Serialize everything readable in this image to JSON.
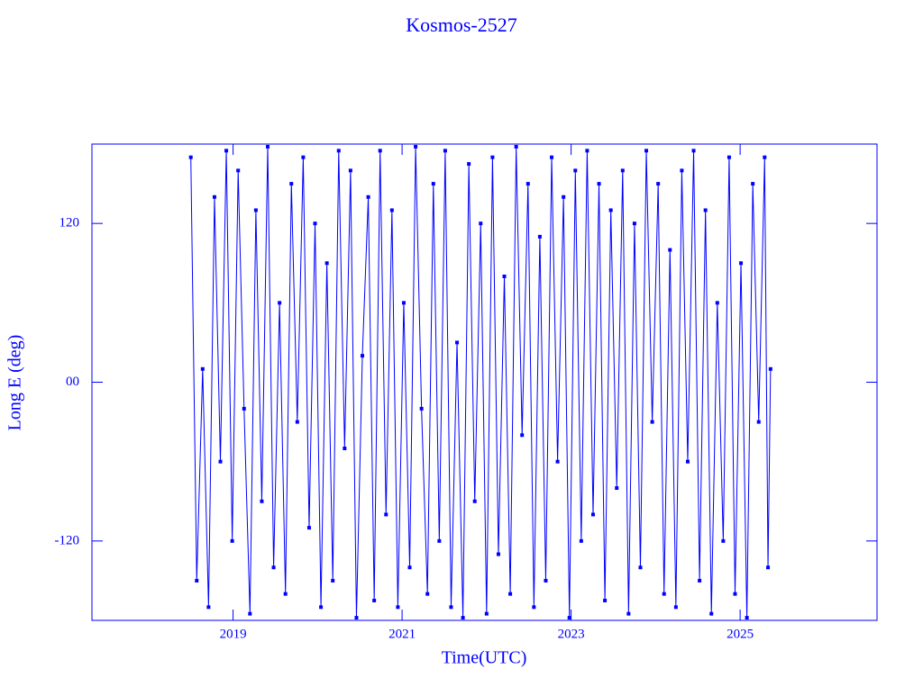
{
  "chart_data": {
    "type": "line",
    "title": "Kosmos-2527",
    "x_label": "Time(UTC)",
    "y_label": "Long E (deg)",
    "xlim": [
      2017.33,
      2026.62
    ],
    "ylim": [
      -180,
      180
    ],
    "xticks": [
      2019,
      2021,
      2023,
      2025
    ],
    "yticks": [
      -120,
      {
        "value": 0,
        "label": "00"
      },
      120
    ],
    "x": [
      2018.5,
      2018.57,
      2018.64,
      2018.71,
      2018.78,
      2018.85,
      2018.92,
      2018.99,
      2019.06,
      2019.13,
      2019.2,
      2019.27,
      2019.34,
      2019.41,
      2019.48,
      2019.55,
      2019.62,
      2019.69,
      2019.76,
      2019.83,
      2019.9,
      2019.97,
      2020.04,
      2020.11,
      2020.18,
      2020.25,
      2020.32,
      2020.39,
      2020.46,
      2020.53,
      2020.6,
      2020.67,
      2020.74,
      2020.81,
      2020.88,
      2020.95,
      2021.02,
      2021.09,
      2021.16,
      2021.23,
      2021.3,
      2021.37,
      2021.44,
      2021.51,
      2021.58,
      2021.65,
      2021.72,
      2021.79,
      2021.86,
      2021.93,
      2022.0,
      2022.07,
      2022.14,
      2022.21,
      2022.28,
      2022.35,
      2022.42,
      2022.49,
      2022.56,
      2022.63,
      2022.7,
      2022.77,
      2022.84,
      2022.91,
      2022.98,
      2023.05,
      2023.12,
      2023.19,
      2023.26,
      2023.33,
      2023.4,
      2023.47,
      2023.54,
      2023.61,
      2023.68,
      2023.75,
      2023.82,
      2023.89,
      2023.96,
      2024.03,
      2024.1,
      2024.17,
      2024.24,
      2024.31,
      2024.38,
      2024.45,
      2024.52,
      2024.59,
      2024.66,
      2024.73,
      2024.8,
      2024.87,
      2024.94,
      2025.01,
      2025.08,
      2025.15,
      2025.22,
      2025.29,
      2025.33,
      2025.36
    ],
    "series": [
      {
        "color": "#0000ff",
        "values": [
          170,
          -150,
          10,
          -170,
          140,
          -60,
          175,
          -120,
          160,
          -20,
          -175,
          130,
          -90,
          178,
          -140,
          60,
          -160,
          150,
          -30,
          170,
          -110,
          120,
          -170,
          90,
          -150,
          175,
          -50,
          160,
          -178,
          20,
          140,
          -165,
          175,
          -100,
          130,
          -170,
          60,
          -140,
          178,
          -20,
          -160,
          150,
          -120,
          175,
          -170,
          30,
          -178,
          165,
          -90,
          120,
          -175,
          170,
          -130,
          80,
          -160,
          178,
          -40,
          150,
          -170,
          110,
          -150,
          170,
          -60,
          140,
          -178,
          160,
          -120,
          175,
          -100,
          150,
          -165,
          130,
          -80,
          160,
          -175,
          120,
          -140,
          175,
          -30,
          150,
          -160,
          100,
          -170,
          160,
          -60,
          175,
          -150,
          130,
          -175,
          60,
          -120,
          170,
          -160,
          90,
          -178,
          150,
          -30,
          170,
          -140,
          10
        ]
      }
    ]
  }
}
